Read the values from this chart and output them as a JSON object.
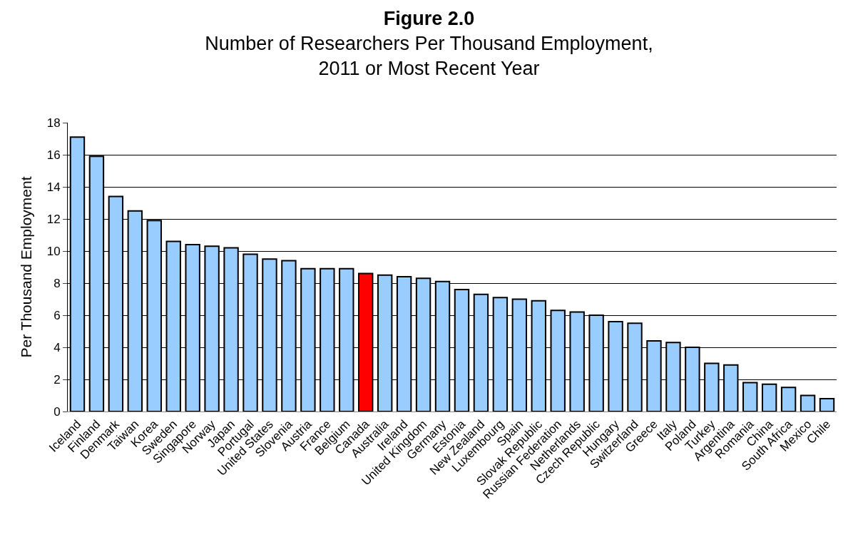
{
  "chart_data": {
    "type": "bar",
    "title": "Figure 2.0",
    "subtitle": "Number of Researchers Per Thousand Employment,\n2011 or Most Recent Year",
    "ylabel": "Per Thousand Employment",
    "categories": [
      "Iceland",
      "Finland",
      "Denmark",
      "Taiwan",
      "Korea",
      "Sweden",
      "Singapore",
      "Norway",
      "Japan",
      "Portugal",
      "United States",
      "Slovenia",
      "Austria",
      "France",
      "Belgium",
      "Canada",
      "Australia",
      "Ireland",
      "United Kingdom",
      "Germany",
      "Estonia",
      "New Zealand",
      "Luxembourg",
      "Spain",
      "Slovak Republic",
      "Russian Federation",
      "Netherlands",
      "Czech Republic",
      "Hungary",
      "Switzerland",
      "Greece",
      "Italy",
      "Poland",
      "Turkey",
      "Argentina",
      "Romania",
      "China",
      "South Africa",
      "Mexico",
      "Chile"
    ],
    "values": [
      17.1,
      15.9,
      13.4,
      12.5,
      11.9,
      10.6,
      10.4,
      10.3,
      10.2,
      9.8,
      9.5,
      9.4,
      8.9,
      8.9,
      8.9,
      8.6,
      8.5,
      8.4,
      8.3,
      8.1,
      7.6,
      7.3,
      7.1,
      7.0,
      6.9,
      6.3,
      6.2,
      6.0,
      5.6,
      5.5,
      4.4,
      4.3,
      4.0,
      3.0,
      2.9,
      1.8,
      1.7,
      1.5,
      1.0,
      0.8
    ],
    "colors": [
      "#99ccff",
      "#99ccff",
      "#99ccff",
      "#99ccff",
      "#99ccff",
      "#99ccff",
      "#99ccff",
      "#99ccff",
      "#99ccff",
      "#99ccff",
      "#99ccff",
      "#99ccff",
      "#99ccff",
      "#99ccff",
      "#99ccff",
      "#ff0000",
      "#99ccff",
      "#99ccff",
      "#99ccff",
      "#99ccff",
      "#99ccff",
      "#99ccff",
      "#99ccff",
      "#99ccff",
      "#99ccff",
      "#99ccff",
      "#99ccff",
      "#99ccff",
      "#99ccff",
      "#99ccff",
      "#99ccff",
      "#99ccff",
      "#99ccff",
      "#99ccff",
      "#99ccff",
      "#99ccff",
      "#99ccff",
      "#99ccff",
      "#99ccff",
      "#99ccff"
    ],
    "ylim": [
      0,
      18
    ],
    "yticks": [
      0,
      2,
      4,
      6,
      8,
      10,
      12,
      14,
      16,
      18
    ],
    "grid": "y"
  }
}
